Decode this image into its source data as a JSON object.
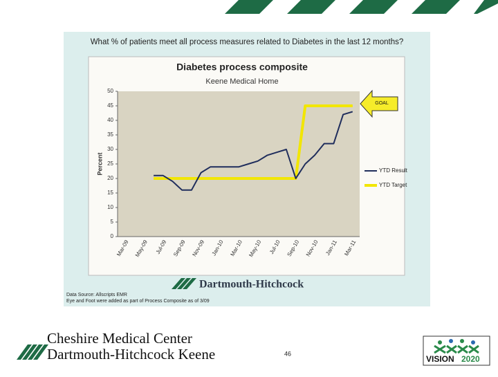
{
  "slide": {
    "question": "What % of patients meet all process measures related to Diabetes in the last 12 months?",
    "data_source": "Data Source: Allscripts EMR",
    "note": "Eye and Foot were added as part of Process Composite as of 3/09",
    "chart_logo": "Dartmouth-Hitchcock",
    "footer_logo_1": "Cheshire Medical Center",
    "footer_logo_2": "Dartmouth-Hitchcock Keene",
    "page_number": "46",
    "vision_logo_1": "VISION",
    "vision_logo_2": "2020"
  },
  "chart_data": {
    "type": "line",
    "title": "Diabetes process composite",
    "subtitle": "Keene Medical Home",
    "ylabel": "Percent",
    "categories": [
      "Mar-09",
      null,
      "May-09",
      null,
      "Jul-09",
      null,
      "Sep-09",
      null,
      "Nov-09",
      null,
      "Jan-10",
      null,
      "Mar-10",
      null,
      "May-10",
      null,
      "Jul-10",
      null,
      "Sep-10",
      null,
      "Nov-10",
      null,
      "Jan-11",
      null,
      "Mar-11"
    ],
    "series": [
      {
        "name": "YTD Result",
        "color": "#1f2d5c",
        "values": [
          null,
          null,
          null,
          21,
          21,
          19,
          16,
          16,
          22,
          24,
          24,
          24,
          24,
          25,
          26,
          28,
          29,
          30,
          20,
          25,
          28,
          32,
          32,
          42,
          43
        ]
      },
      {
        "name": "YTD Target",
        "color": "#f2e600",
        "values": [
          null,
          null,
          null,
          20,
          20,
          20,
          20,
          20,
          20,
          20,
          20,
          20,
          20,
          20,
          20,
          20,
          20,
          20,
          20,
          45,
          45,
          45,
          45,
          45,
          45
        ]
      }
    ],
    "ylim": [
      0,
      50
    ],
    "yticks": [
      0,
      5,
      10,
      15,
      20,
      25,
      30,
      35,
      40,
      45,
      50
    ],
    "grid": false,
    "legend": "right",
    "annotation": "GOAL"
  }
}
